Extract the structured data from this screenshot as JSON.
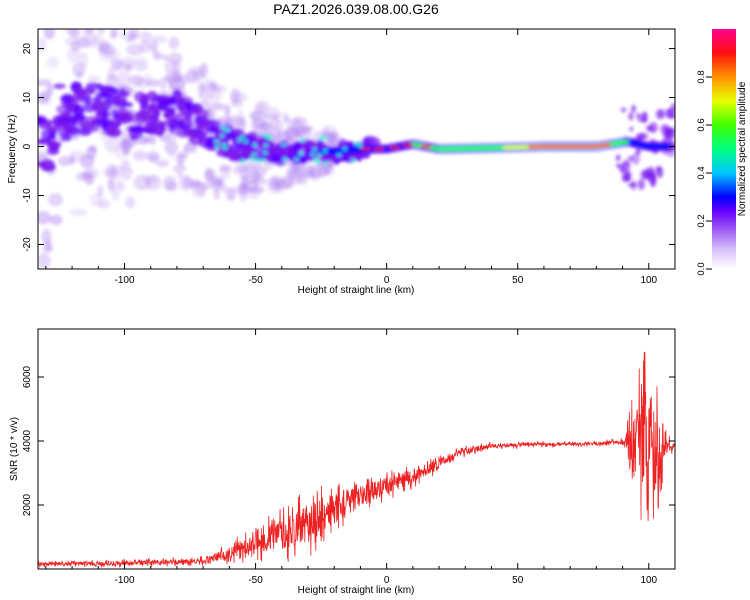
{
  "title": "PAZ1.2026.039.08.00.G26",
  "chart_data": [
    {
      "type": "heatmap",
      "title": "PAZ1.2026.039.08.00.G26",
      "xlabel": "Height of straight line (km)",
      "ylabel": "Frequency (Hz)",
      "xlim": [
        -133,
        110
      ],
      "ylim": [
        -25,
        24
      ],
      "xticks": [
        -100,
        -50,
        0,
        50,
        100
      ],
      "yticks": [
        -20,
        -10,
        0,
        10,
        20
      ],
      "grid": false,
      "ridge": [
        {
          "x": -125,
          "freq": 7
        },
        {
          "x": -110,
          "freq": 8
        },
        {
          "x": -95,
          "freq": 6
        },
        {
          "x": -80,
          "freq": 7
        },
        {
          "x": -65,
          "freq": 2
        },
        {
          "x": -55,
          "freq": 0
        },
        {
          "x": -40,
          "freq": -1
        },
        {
          "x": -30,
          "freq": -1
        },
        {
          "x": -20,
          "freq": -1
        },
        {
          "x": -10,
          "freq": -0.5
        },
        {
          "x": 0,
          "freq": -0.5
        },
        {
          "x": 10,
          "freq": 0.5
        },
        {
          "x": 20,
          "freq": -0.5
        },
        {
          "x": 40,
          "freq": -0.3
        },
        {
          "x": 60,
          "freq": 0
        },
        {
          "x": 80,
          "freq": 0
        },
        {
          "x": 92,
          "freq": 1
        },
        {
          "x": 100,
          "freq": 0
        },
        {
          "x": 110,
          "freq": 0
        }
      ],
      "colorbar": {
        "label": "Normalized spectral amplitude",
        "ticks": [
          "0.0",
          "0.2",
          "0.4",
          "0.6",
          "0.8"
        ],
        "range": [
          0,
          1
        ],
        "colors": [
          "#ffffff",
          "#b88cf0",
          "#7a00ff",
          "#0000ff",
          "#00ffff",
          "#00ff00",
          "#ffff00",
          "#ff8000",
          "#ff0000",
          "#ff0080"
        ]
      }
    },
    {
      "type": "line",
      "xlabel": "Height of straight line (km)",
      "ylabel": "SNR (10 * v/v)",
      "xlim": [
        -133,
        110
      ],
      "ylim": [
        0,
        7500
      ],
      "xticks": [
        -100,
        -50,
        0,
        50,
        100
      ],
      "yticks": [
        2000,
        4000,
        6000
      ],
      "color": "#ee2222",
      "envelope": [
        {
          "x": -133,
          "mean": 150,
          "amp": 100
        },
        {
          "x": -110,
          "mean": 170,
          "amp": 130
        },
        {
          "x": -90,
          "mean": 200,
          "amp": 140
        },
        {
          "x": -70,
          "mean": 250,
          "amp": 160
        },
        {
          "x": -60,
          "mean": 500,
          "amp": 350
        },
        {
          "x": -50,
          "mean": 800,
          "amp": 600
        },
        {
          "x": -40,
          "mean": 1100,
          "amp": 900
        },
        {
          "x": -30,
          "mean": 1400,
          "amp": 1100
        },
        {
          "x": -20,
          "mean": 1900,
          "amp": 900
        },
        {
          "x": -10,
          "mean": 2300,
          "amp": 600
        },
        {
          "x": 0,
          "mean": 2600,
          "amp": 500
        },
        {
          "x": 10,
          "mean": 2900,
          "amp": 400
        },
        {
          "x": 20,
          "mean": 3300,
          "amp": 300
        },
        {
          "x": 30,
          "mean": 3700,
          "amp": 200
        },
        {
          "x": 40,
          "mean": 3850,
          "amp": 120
        },
        {
          "x": 60,
          "mean": 3900,
          "amp": 100
        },
        {
          "x": 80,
          "mean": 3920,
          "amp": 100
        },
        {
          "x": 90,
          "mean": 3950,
          "amp": 150
        },
        {
          "x": 93,
          "mean": 3700,
          "amp": 1500
        },
        {
          "x": 97,
          "mean": 3900,
          "amp": 2800
        },
        {
          "x": 100,
          "mean": 3800,
          "amp": 3300
        },
        {
          "x": 104,
          "mean": 3800,
          "amp": 2000
        },
        {
          "x": 107,
          "mean": 3850,
          "amp": 500
        },
        {
          "x": 110,
          "mean": 3850,
          "amp": 100
        }
      ]
    }
  ]
}
